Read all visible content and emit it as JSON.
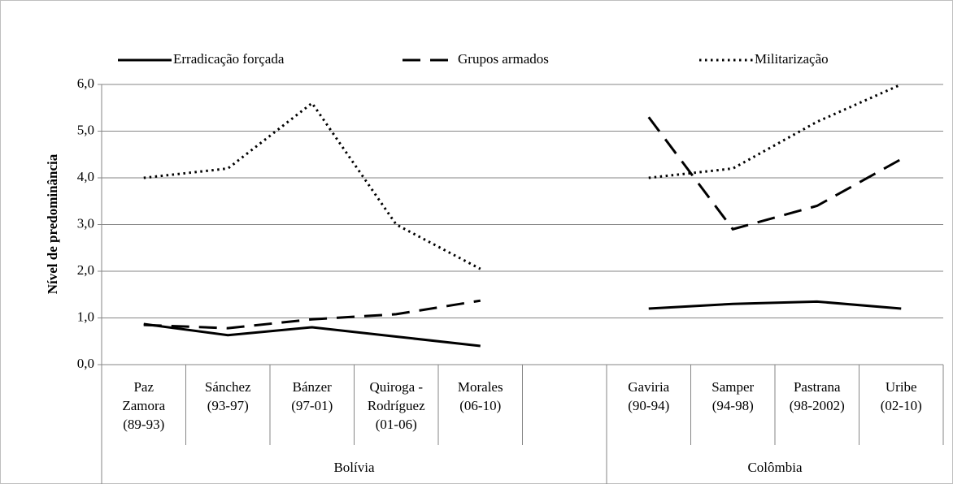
{
  "chart_data": {
    "type": "line",
    "ylabel": "Nível de predominância",
    "categories": [
      [
        "Paz",
        "Zamora",
        "(89-93)"
      ],
      [
        "Sánchez",
        "(93-97)"
      ],
      [
        "Bánzer",
        "(97-01)"
      ],
      [
        "Quiroga -",
        "Rodríguez",
        "(01-06)"
      ],
      [
        "Morales",
        "(06-10)"
      ],
      null,
      [
        "Gaviria",
        "(90-94)"
      ],
      [
        "Samper",
        "(94-98)"
      ],
      [
        "Pastrana",
        "(98-2002)"
      ],
      [
        "Uribe",
        "(02-10)"
      ]
    ],
    "groups": [
      "Bolívia",
      "Colômbia"
    ],
    "series": [
      {
        "name": "Erradicação forçada",
        "color": "#000000",
        "dash": "solid",
        "values": [
          0.87,
          0.63,
          0.8,
          0.6,
          0.4,
          null,
          1.2,
          1.3,
          1.35,
          1.2
        ]
      },
      {
        "name": "Grupos armados",
        "color": "#000000",
        "dash": "dashed",
        "values": [
          0.85,
          0.78,
          0.97,
          1.08,
          1.37,
          null,
          5.3,
          2.9,
          3.4,
          4.4
        ]
      },
      {
        "name": "Militarização",
        "color": "#000000",
        "dash": "dotted",
        "values": [
          4.0,
          4.2,
          5.6,
          3.0,
          2.05,
          null,
          4.0,
          4.2,
          5.2,
          6.0
        ]
      }
    ],
    "ylim": [
      0,
      6
    ],
    "yticks": [
      {
        "value": 0,
        "label": "0,0"
      },
      {
        "value": 1,
        "label": "1,0"
      },
      {
        "value": 2,
        "label": "2,0"
      },
      {
        "value": 3,
        "label": "3,0"
      },
      {
        "value": 4,
        "label": "4,0"
      },
      {
        "value": 5,
        "label": "5,0"
      },
      {
        "value": 6,
        "label": "6,0"
      }
    ],
    "grid": true,
    "legend": "top"
  }
}
